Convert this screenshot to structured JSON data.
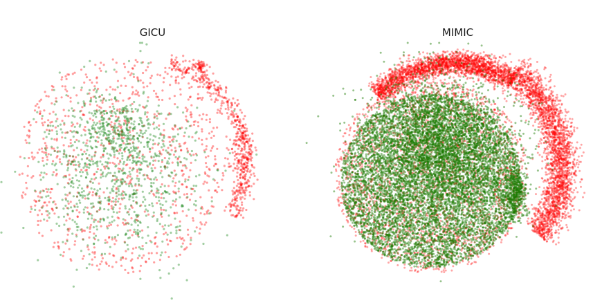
{
  "chart_data": [
    {
      "type": "scatter",
      "title": "GICU",
      "xlabel": "",
      "ylabel": "",
      "grid": false,
      "axes_visible": false,
      "series": [
        {
          "color": "#ff0000",
          "approx_point_count": 1600
        },
        {
          "color": "#228b22",
          "approx_point_count": 1200
        }
      ]
    },
    {
      "type": "scatter",
      "title": "MIMIC",
      "xlabel": "",
      "ylabel": "",
      "grid": false,
      "axes_visible": false,
      "series": [
        {
          "color": "#ff0000",
          "approx_point_count": 9000
        },
        {
          "color": "#1a7a00",
          "approx_point_count": 12000
        }
      ]
    }
  ]
}
